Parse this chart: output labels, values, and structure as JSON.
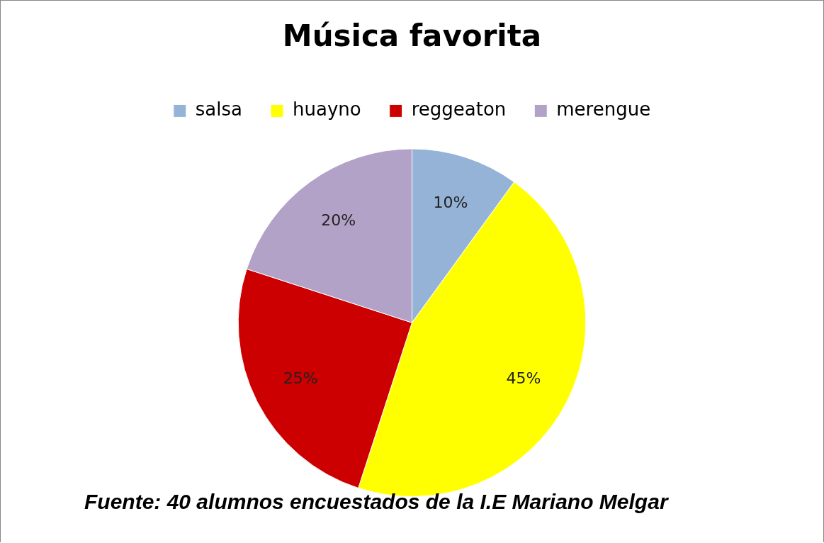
{
  "chart_data": {
    "type": "pie",
    "title": "Música favorita",
    "categories": [
      "salsa",
      "huayno",
      "reggeaton",
      "merengue"
    ],
    "values": [
      10,
      45,
      25,
      20
    ],
    "colors": [
      "#95b3d7",
      "#ffff00",
      "#cc0000",
      "#b3a2c7"
    ],
    "value_labels": [
      "10%",
      "45%",
      "25%",
      "20%"
    ],
    "legend": "top",
    "annotations": [
      "Fuente: 40 alumnos encuestados de la I.E Mariano Melgar"
    ]
  }
}
